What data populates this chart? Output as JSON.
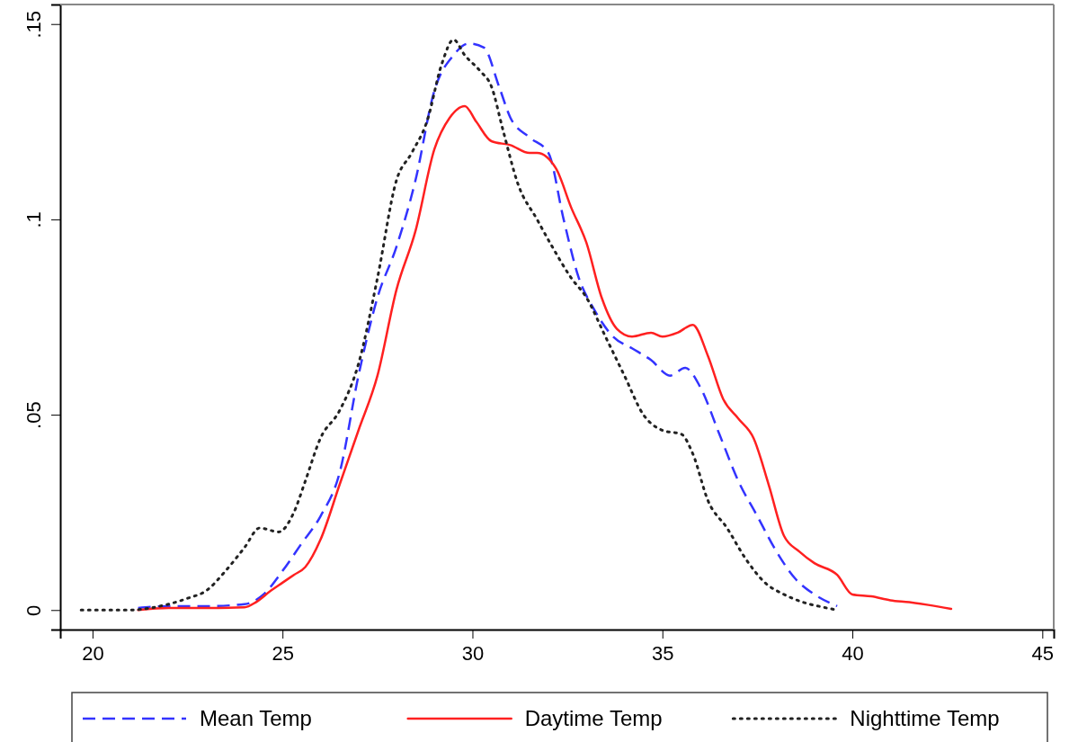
{
  "chart_data": {
    "type": "line",
    "xlim": [
      19.15,
      45.3
    ],
    "ylim": [
      -0.005,
      0.155
    ],
    "xticks": [
      20,
      25,
      30,
      35,
      40,
      45
    ],
    "yticks": [
      {
        "value": 0,
        "label": "0"
      },
      {
        "value": 0.05,
        "label": ".05"
      },
      {
        "value": 0.1,
        "label": ".1"
      },
      {
        "value": 0.15,
        "label": ".15"
      }
    ],
    "grid": false,
    "legend": "bottom",
    "series": [
      {
        "name": "Mean Temp",
        "color": "#3333ff",
        "line_style": "dashed",
        "x": [
          21.2,
          22,
          23,
          24,
          24.5,
          25,
          25.5,
          26,
          26.5,
          27,
          27.5,
          28,
          28.5,
          29,
          29.5,
          29.9,
          30.3,
          30.7,
          31,
          31.5,
          32,
          32.4,
          32.8,
          33.2,
          33.7,
          34.2,
          34.7,
          35.2,
          35.6,
          36,
          36.5,
          37,
          37.5,
          38,
          38.5,
          39,
          39.6
        ],
        "values": [
          0.0005,
          0.001,
          0.001,
          0.0015,
          0.004,
          0.01,
          0.017,
          0.024,
          0.035,
          0.06,
          0.08,
          0.093,
          0.11,
          0.133,
          0.142,
          0.145,
          0.144,
          0.134,
          0.126,
          0.121,
          0.117,
          0.1,
          0.085,
          0.077,
          0.07,
          0.067,
          0.064,
          0.06,
          0.062,
          0.057,
          0.045,
          0.033,
          0.024,
          0.015,
          0.008,
          0.004,
          0.001
        ]
      },
      {
        "name": "Daytime Temp",
        "color": "#ff2020",
        "line_style": "solid",
        "x": [
          21.2,
          22,
          23,
          24,
          24.3,
          24.7,
          25,
          25.3,
          25.6,
          26,
          26.5,
          27,
          27.5,
          28,
          28.5,
          29,
          29.4,
          29.8,
          30.1,
          30.5,
          31,
          31.5,
          31.7,
          32.2,
          32.6,
          33,
          33.4,
          33.8,
          34.2,
          34.7,
          35,
          35.4,
          35.8,
          36.2,
          36.6,
          37,
          37.4,
          37.8,
          38.2,
          38.6,
          39,
          39.6,
          40,
          40.5,
          41,
          41.5,
          42,
          42.6
        ],
        "values": [
          0,
          0.0005,
          0.0005,
          0.0007,
          0.002,
          0.005,
          0.007,
          0.009,
          0.011,
          0.018,
          0.032,
          0.046,
          0.06,
          0.082,
          0.097,
          0.118,
          0.126,
          0.129,
          0.125,
          0.12,
          0.119,
          0.117,
          0.117,
          0.113,
          0.103,
          0.094,
          0.08,
          0.072,
          0.07,
          0.071,
          0.07,
          0.071,
          0.073,
          0.065,
          0.054,
          0.049,
          0.044,
          0.032,
          0.019,
          0.015,
          0.012,
          0.009,
          0.004,
          0.0035,
          0.0025,
          0.002,
          0.0013,
          0.0003
        ]
      },
      {
        "name": "Nighttime Temp",
        "color": "#222222",
        "line_style": "dotted",
        "x": [
          19.7,
          21,
          21.5,
          22,
          22.5,
          23,
          23.5,
          24,
          24.4,
          24.9,
          25.3,
          25.6,
          26,
          26.5,
          27,
          27.5,
          28,
          28.4,
          28.8,
          29.2,
          29.5,
          29.8,
          30.2,
          30.5,
          30.8,
          31.2,
          31.7,
          32.1,
          32.6,
          33,
          33.5,
          34,
          34.5,
          35,
          35.5,
          35.8,
          36.2,
          36.7,
          37.2,
          37.7,
          38.2,
          38.7,
          39.2,
          39.6
        ],
        "values": [
          0,
          0,
          0.0005,
          0.0015,
          0.003,
          0.005,
          0.01,
          0.016,
          0.021,
          0.02,
          0.025,
          0.033,
          0.044,
          0.051,
          0.063,
          0.085,
          0.11,
          0.117,
          0.125,
          0.14,
          0.146,
          0.142,
          0.138,
          0.134,
          0.123,
          0.109,
          0.1,
          0.093,
          0.085,
          0.08,
          0.07,
          0.06,
          0.05,
          0.046,
          0.045,
          0.04,
          0.028,
          0.021,
          0.013,
          0.007,
          0.004,
          0.002,
          0.0008,
          0
        ]
      }
    ]
  }
}
